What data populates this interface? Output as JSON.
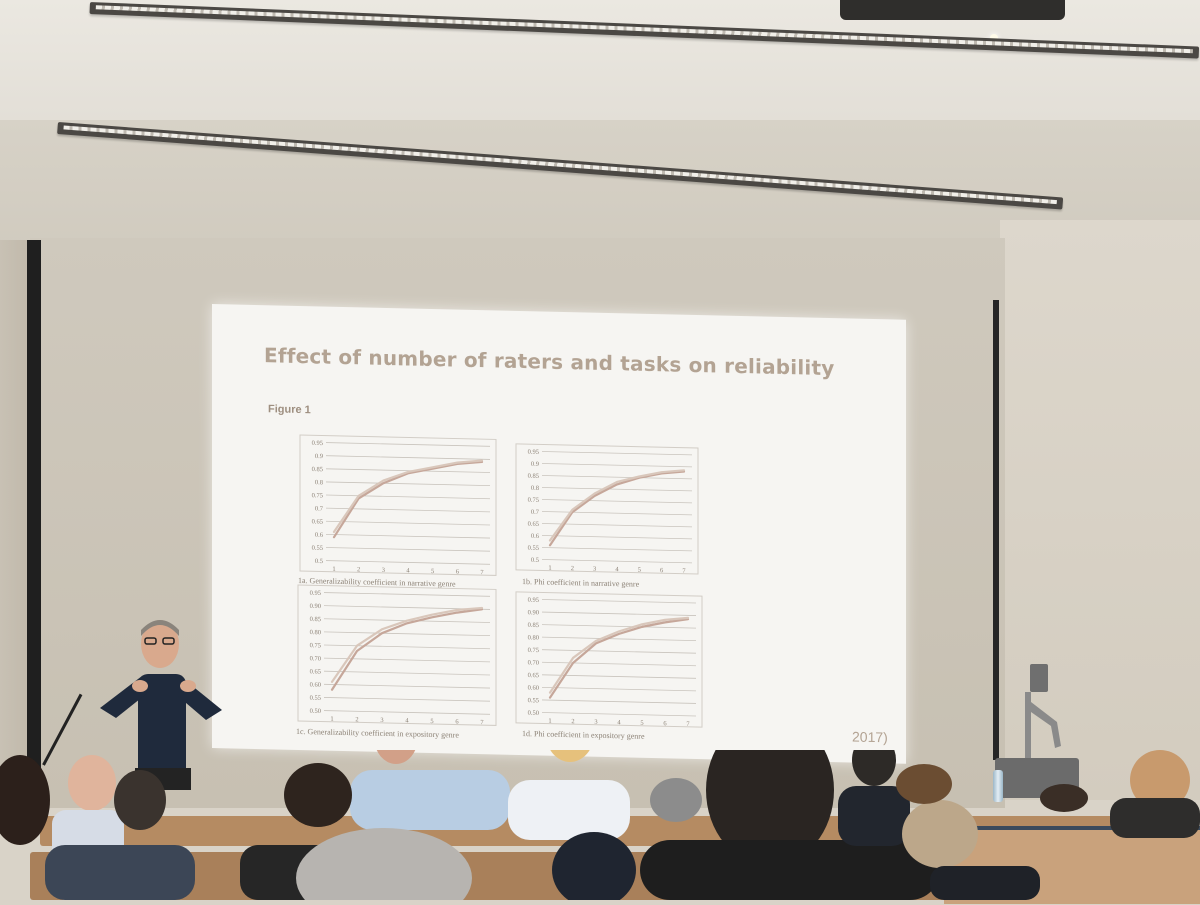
{
  "slide": {
    "title": "Effect of number of raters and tasks on reliability",
    "figure_label": "Figure 1",
    "citation": "2017)"
  },
  "chart_data": [
    {
      "type": "line",
      "panel": "1a",
      "caption": "1a. Generalizability coefficient in narrative genre",
      "x": [
        1,
        2,
        3,
        4,
        5,
        6,
        7
      ],
      "yticks": [
        "0.95",
        "0.9",
        "0.85",
        "0.8",
        "0.75",
        "0.7",
        "0.65",
        "0.6",
        "0.55",
        "0.5"
      ],
      "ylim": [
        0.5,
        0.95
      ],
      "series": [
        {
          "values": [
            0.59,
            0.74,
            0.8,
            0.84,
            0.86,
            0.88,
            0.89
          ]
        },
        {
          "values": [
            0.61,
            0.75,
            0.81,
            0.845,
            0.865,
            0.885,
            0.895
          ]
        }
      ]
    },
    {
      "type": "line",
      "panel": "1b",
      "caption": "1b. Phi coefficient in narrative genre",
      "x": [
        1,
        2,
        3,
        4,
        5,
        6,
        7
      ],
      "yticks": [
        "0.95",
        "0.9",
        "0.85",
        "0.8",
        "0.75",
        "0.7",
        "0.65",
        "0.6",
        "0.55",
        "0.5"
      ],
      "ylim": [
        0.5,
        0.95
      ],
      "series": [
        {
          "values": [
            0.56,
            0.7,
            0.77,
            0.82,
            0.85,
            0.87,
            0.88
          ]
        },
        {
          "values": [
            0.58,
            0.71,
            0.78,
            0.83,
            0.855,
            0.875,
            0.885
          ]
        }
      ]
    },
    {
      "type": "line",
      "panel": "1c",
      "caption": "1c. Generalizability coefficient in expository genre",
      "x": [
        1,
        2,
        3,
        4,
        5,
        6,
        7
      ],
      "yticks": [
        "0.95",
        "0.90",
        "0.85",
        "0.80",
        "0.75",
        "0.70",
        "0.65",
        "0.60",
        "0.55",
        "0.50"
      ],
      "ylim": [
        0.5,
        0.95
      ],
      "series": [
        {
          "values": [
            0.58,
            0.73,
            0.8,
            0.84,
            0.865,
            0.885,
            0.9
          ]
        },
        {
          "values": [
            0.61,
            0.75,
            0.815,
            0.85,
            0.875,
            0.895,
            0.905
          ]
        }
      ]
    },
    {
      "type": "line",
      "panel": "1d",
      "caption": "1d. Phi coefficient in expository genre",
      "x": [
        1,
        2,
        3,
        4,
        5,
        6,
        7
      ],
      "yticks": [
        "0.95",
        "0.90",
        "0.85",
        "0.80",
        "0.75",
        "0.70",
        "0.65",
        "0.60",
        "0.55",
        "0.50"
      ],
      "ylim": [
        0.5,
        0.95
      ],
      "series": [
        {
          "values": [
            0.56,
            0.7,
            0.78,
            0.82,
            0.85,
            0.87,
            0.885
          ]
        },
        {
          "values": [
            0.58,
            0.72,
            0.79,
            0.83,
            0.86,
            0.88,
            0.89
          ]
        }
      ]
    }
  ],
  "colors": {
    "slide_background": "#f6f5f2",
    "title_text": "#b3a393",
    "line_primary": "#c6a79a",
    "line_secondary": "#d9c7bb",
    "gridline": "#c9c4bd",
    "seat_wood": "#b58b62",
    "wall": "#d7d2c7"
  }
}
